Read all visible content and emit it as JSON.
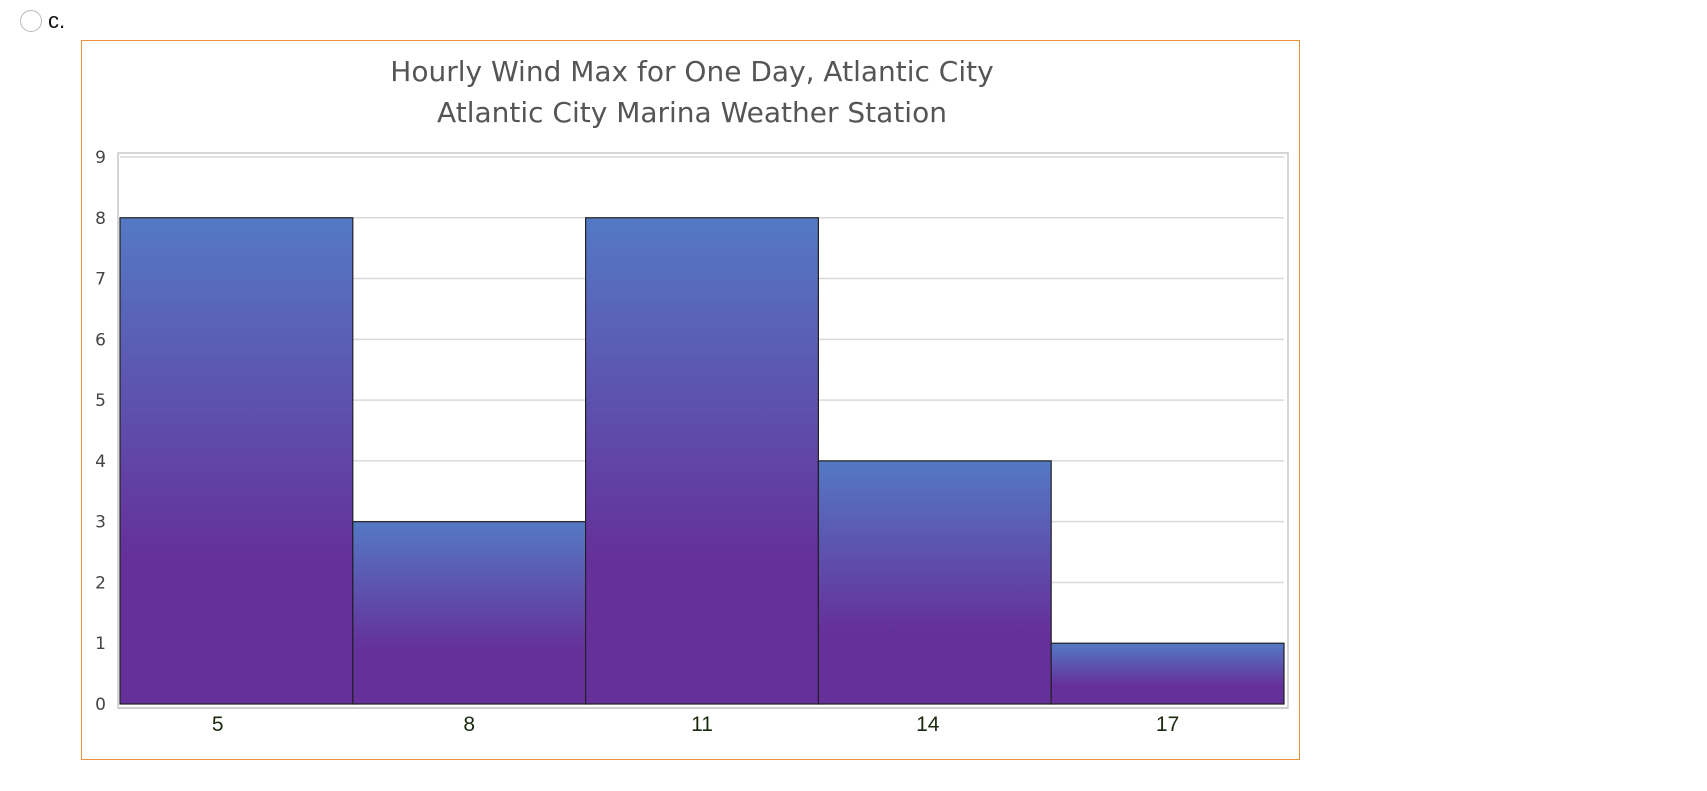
{
  "option": {
    "label": "c."
  },
  "colors": {
    "frame_border": "#e8913f",
    "bar_top": "#5479c4",
    "bar_bottom": "#65309a",
    "bar_outline": "#222222",
    "grid": "#d9d9d9"
  },
  "chart_data": {
    "type": "bar",
    "title": "Hourly Wind Max for One Day, Atlantic City",
    "subtitle": "Atlantic City Marina Weather Station",
    "categories": [
      "5",
      "8",
      "11",
      "14",
      "17"
    ],
    "values": [
      8,
      3,
      8,
      4,
      1
    ],
    "xlabel": "",
    "ylabel": "",
    "ylim": [
      0,
      9
    ],
    "yticks": [
      0,
      1,
      2,
      3,
      4,
      5,
      6,
      7,
      8,
      9
    ],
    "grid": true,
    "legend": "none",
    "bar_gap": "none (histogram style)"
  }
}
